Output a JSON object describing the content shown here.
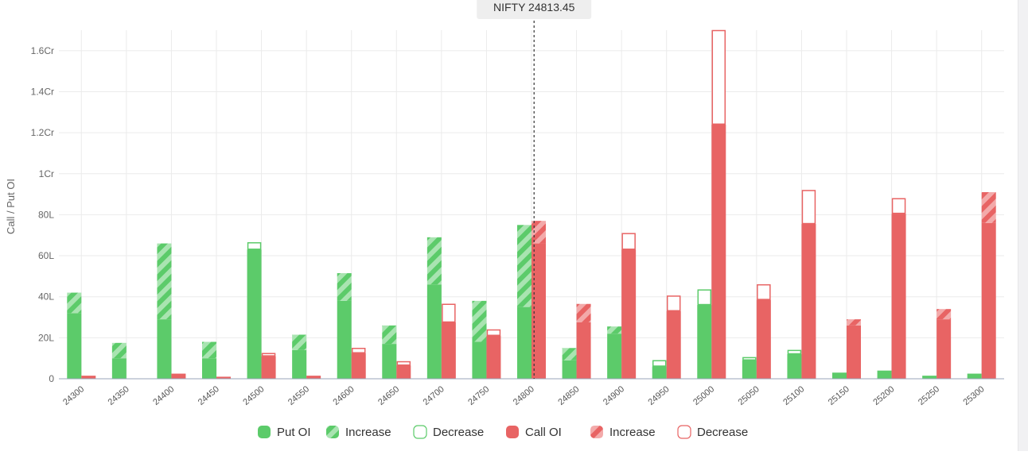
{
  "colors": {
    "put": "#5ccb6a",
    "put_light": "#a9e4b1",
    "call": "#e86464",
    "call_light": "#f3aaaa",
    "grid": "#ebebeb",
    "axis": "#9aa5b8",
    "spot_line": "#333333"
  },
  "chart_data": {
    "type": "bar",
    "ylabel": "Call / Put OI",
    "ylim": [
      0,
      17000000
    ],
    "yticks": [
      {
        "value": 0,
        "label": "0"
      },
      {
        "value": 2000000,
        "label": "20L"
      },
      {
        "value": 4000000,
        "label": "40L"
      },
      {
        "value": 6000000,
        "label": "60L"
      },
      {
        "value": 8000000,
        "label": "80L"
      },
      {
        "value": 10000000,
        "label": "1Cr"
      },
      {
        "value": 12000000,
        "label": "1.2Cr"
      },
      {
        "value": 14000000,
        "label": "1.4Cr"
      },
      {
        "value": 16000000,
        "label": "1.6Cr"
      }
    ],
    "categories": [
      "24300",
      "24350",
      "24400",
      "24450",
      "24500",
      "24550",
      "24600",
      "24650",
      "24700",
      "24750",
      "24800",
      "24850",
      "24900",
      "24950",
      "25000",
      "25050",
      "25100",
      "25150",
      "25200",
      "25250",
      "25300"
    ],
    "spot": {
      "label": "NIFTY 24813.45",
      "value": 24813.45
    },
    "series": [
      {
        "name": "Put OI",
        "values": [
          3200000,
          1000000,
          2900000,
          1000000,
          6300000,
          1400000,
          3800000,
          1700000,
          4600000,
          1800000,
          3500000,
          900000,
          2200000,
          600000,
          3600000,
          900000,
          1200000,
          300000,
          400000,
          150000,
          250000
        ]
      },
      {
        "name": "Increase",
        "values": [
          1000000,
          750000,
          3700000,
          800000,
          0,
          750000,
          1350000,
          900000,
          2300000,
          2000000,
          4000000,
          600000,
          350000,
          0,
          0,
          0,
          0,
          0,
          0,
          0,
          0
        ]
      },
      {
        "name": "Decrease",
        "values": [
          0,
          0,
          0,
          0,
          350000,
          0,
          0,
          0,
          0,
          0,
          0,
          0,
          0,
          300000,
          750000,
          150000,
          200000,
          0,
          0,
          0,
          0
        ]
      },
      {
        "name": "Call OI",
        "values": [
          150000,
          0,
          250000,
          100000,
          1100000,
          150000,
          1250000,
          650000,
          2750000,
          2100000,
          6600000,
          2750000,
          6300000,
          3300000,
          12400000,
          3850000,
          7550000,
          2600000,
          8050000,
          2900000,
          7600000
        ]
      },
      {
        "name": "Increase",
        "values": [
          0,
          0,
          0,
          0,
          0,
          0,
          0,
          0,
          0,
          0,
          1100000,
          900000,
          0,
          0,
          0,
          0,
          0,
          300000,
          0,
          500000,
          1500000
        ]
      },
      {
        "name": "Decrease",
        "values": [
          0,
          0,
          0,
          0,
          150000,
          0,
          250000,
          200000,
          900000,
          300000,
          0,
          0,
          800000,
          750000,
          4600000,
          750000,
          1650000,
          0,
          750000,
          0,
          0
        ]
      }
    ],
    "legend": {
      "position": "bottom",
      "items": [
        {
          "label": "Put OI",
          "style": "solid",
          "color": "put"
        },
        {
          "label": "Increase",
          "style": "hatch",
          "color": "put"
        },
        {
          "label": "Decrease",
          "style": "outline",
          "color": "put"
        },
        {
          "label": "Call OI",
          "style": "solid",
          "color": "call"
        },
        {
          "label": "Increase",
          "style": "hatch",
          "color": "call"
        },
        {
          "label": "Decrease",
          "style": "outline",
          "color": "call"
        }
      ]
    }
  }
}
